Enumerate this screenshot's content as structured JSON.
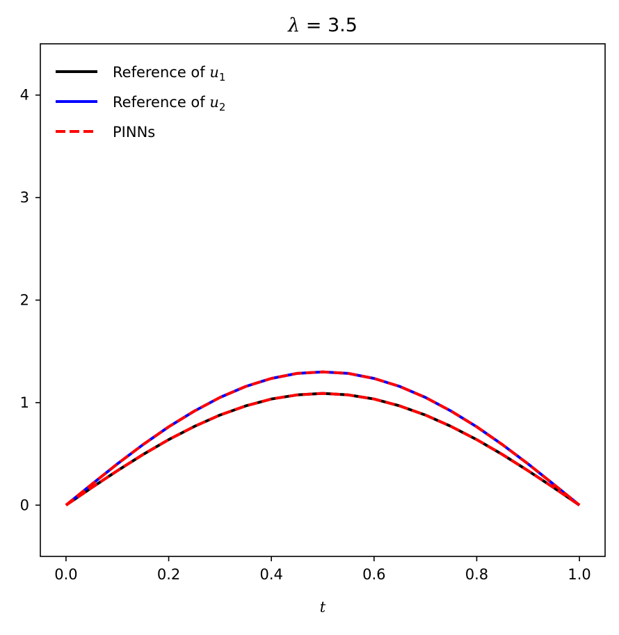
{
  "chart_data": {
    "type": "line",
    "title": "λ = 3.5",
    "title_symbol": "λ",
    "title_rest": " = 3.5",
    "xlabel": "t",
    "ylabel": "",
    "xlim": [
      -0.05,
      1.05
    ],
    "ylim": [
      -0.5,
      4.5
    ],
    "grid": false,
    "legend_position": "upper-left",
    "x_ticks": [
      0.0,
      0.2,
      0.4,
      0.6,
      0.8,
      1.0
    ],
    "x_tick_labels": [
      "0.0",
      "0.2",
      "0.4",
      "0.6",
      "0.8",
      "1.0"
    ],
    "y_ticks": [
      0,
      1,
      2,
      3,
      4
    ],
    "y_tick_labels": [
      "0",
      "1",
      "2",
      "3",
      "4"
    ],
    "x": [
      0.0,
      0.05,
      0.1,
      0.15,
      0.2,
      0.25,
      0.3,
      0.35,
      0.4,
      0.45,
      0.5,
      0.55,
      0.6,
      0.65,
      0.7,
      0.75,
      0.8,
      0.85,
      0.9,
      0.95,
      1.0
    ],
    "series": [
      {
        "name": "Reference of u1",
        "legend_prefix": "Reference of ",
        "legend_var": "u",
        "legend_sub": "1",
        "color": "#000000",
        "style": "solid",
        "values": [
          0.0,
          0.17,
          0.336,
          0.494,
          0.639,
          0.768,
          0.879,
          0.968,
          1.035,
          1.075,
          1.09,
          1.075,
          1.035,
          0.968,
          0.879,
          0.768,
          0.639,
          0.494,
          0.336,
          0.17,
          0.0
        ]
      },
      {
        "name": "Reference of u2",
        "legend_prefix": "Reference of ",
        "legend_var": "u",
        "legend_sub": "2",
        "color": "#0000ff",
        "style": "solid",
        "values": [
          0.0,
          0.203,
          0.402,
          0.59,
          0.764,
          0.918,
          1.051,
          1.158,
          1.236,
          1.285,
          1.3,
          1.285,
          1.236,
          1.158,
          1.051,
          0.918,
          0.764,
          0.59,
          0.402,
          0.203,
          0.0
        ]
      },
      {
        "name": "PINNs",
        "legend_prefix": "PINNs",
        "color": "#ff0000",
        "style": "dashed",
        "values": [
          0.0,
          0.17,
          0.336,
          0.494,
          0.639,
          0.768,
          0.879,
          0.968,
          1.035,
          1.075,
          1.09,
          1.075,
          1.035,
          0.968,
          0.879,
          0.768,
          0.639,
          0.494,
          0.336,
          0.17,
          0.0
        ]
      },
      {
        "name": "",
        "color": "#ff0000",
        "style": "dashed",
        "values": [
          0.0,
          0.203,
          0.402,
          0.59,
          0.764,
          0.918,
          1.051,
          1.158,
          1.236,
          1.285,
          1.3,
          1.285,
          1.236,
          1.158,
          1.051,
          0.918,
          0.764,
          0.59,
          0.402,
          0.203,
          0.0
        ]
      }
    ]
  }
}
